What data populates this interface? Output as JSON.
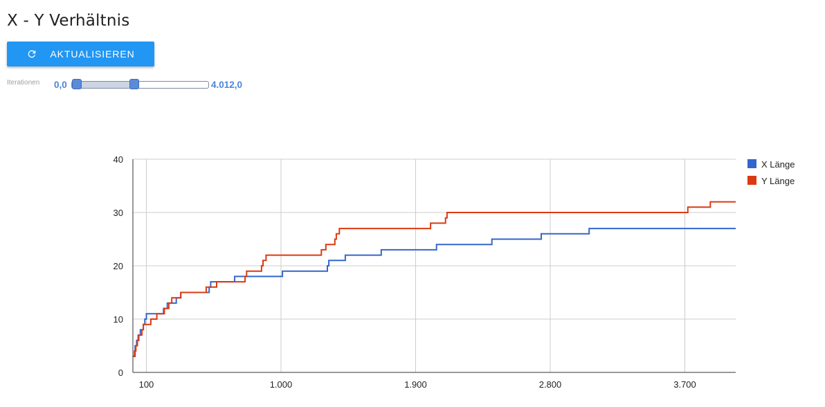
{
  "page": {
    "title": "X - Y Verhältnis"
  },
  "toolbar": {
    "refresh_label": "AKTUALISIEREN",
    "refresh_icon": "refresh-icon",
    "accent_color": "#2196f3"
  },
  "slider": {
    "label": "Iterationen",
    "min_label": "0,0",
    "max_label": "4.012,0",
    "range_min": 0,
    "range_max": 4012,
    "low_value": 0,
    "high_value": 1780
  },
  "chart_data": {
    "type": "line",
    "title": "",
    "xlabel": "",
    "ylabel": "",
    "xlim": [
      10,
      4040
    ],
    "ylim": [
      0,
      40
    ],
    "x_ticks": [
      100,
      1000,
      1900,
      2800,
      3700
    ],
    "x_tick_labels": [
      "100",
      "1.000",
      "1.900",
      "2.800",
      "3.700"
    ],
    "y_ticks": [
      0,
      10,
      20,
      30,
      40
    ],
    "y_tick_labels": [
      "0",
      "10",
      "20",
      "30",
      "40"
    ],
    "grid": true,
    "legend": "right",
    "step": true,
    "series": [
      {
        "name": "X Länge",
        "color": "#3366cc",
        "points": [
          [
            10,
            3
          ],
          [
            25,
            5
          ],
          [
            35,
            6
          ],
          [
            45,
            7
          ],
          [
            60,
            8
          ],
          [
            80,
            9
          ],
          [
            90,
            10
          ],
          [
            100,
            11
          ],
          [
            190,
            11
          ],
          [
            215,
            12
          ],
          [
            240,
            13
          ],
          [
            300,
            14
          ],
          [
            330,
            15
          ],
          [
            520,
            16
          ],
          [
            530,
            17
          ],
          [
            690,
            18
          ],
          [
            1010,
            19
          ],
          [
            1310,
            20
          ],
          [
            1320,
            21
          ],
          [
            1430,
            22
          ],
          [
            1670,
            23
          ],
          [
            2040,
            24
          ],
          [
            2410,
            25
          ],
          [
            2740,
            26
          ],
          [
            3060,
            27
          ],
          [
            4040,
            27
          ]
        ]
      },
      {
        "name": "Y Länge",
        "color": "#dc3912",
        "points": [
          [
            10,
            3
          ],
          [
            20,
            4
          ],
          [
            30,
            5
          ],
          [
            40,
            6
          ],
          [
            50,
            7
          ],
          [
            70,
            8
          ],
          [
            80,
            9
          ],
          [
            130,
            10
          ],
          [
            170,
            11
          ],
          [
            220,
            12
          ],
          [
            250,
            13
          ],
          [
            270,
            14
          ],
          [
            330,
            15
          ],
          [
            500,
            16
          ],
          [
            570,
            17
          ],
          [
            760,
            18
          ],
          [
            770,
            19
          ],
          [
            870,
            20
          ],
          [
            880,
            21
          ],
          [
            900,
            22
          ],
          [
            1270,
            23
          ],
          [
            1300,
            24
          ],
          [
            1360,
            25
          ],
          [
            1370,
            26
          ],
          [
            1390,
            27
          ],
          [
            2000,
            28
          ],
          [
            2100,
            29
          ],
          [
            2110,
            30
          ],
          [
            3720,
            31
          ],
          [
            3870,
            32
          ],
          [
            4040,
            32
          ]
        ]
      }
    ]
  }
}
